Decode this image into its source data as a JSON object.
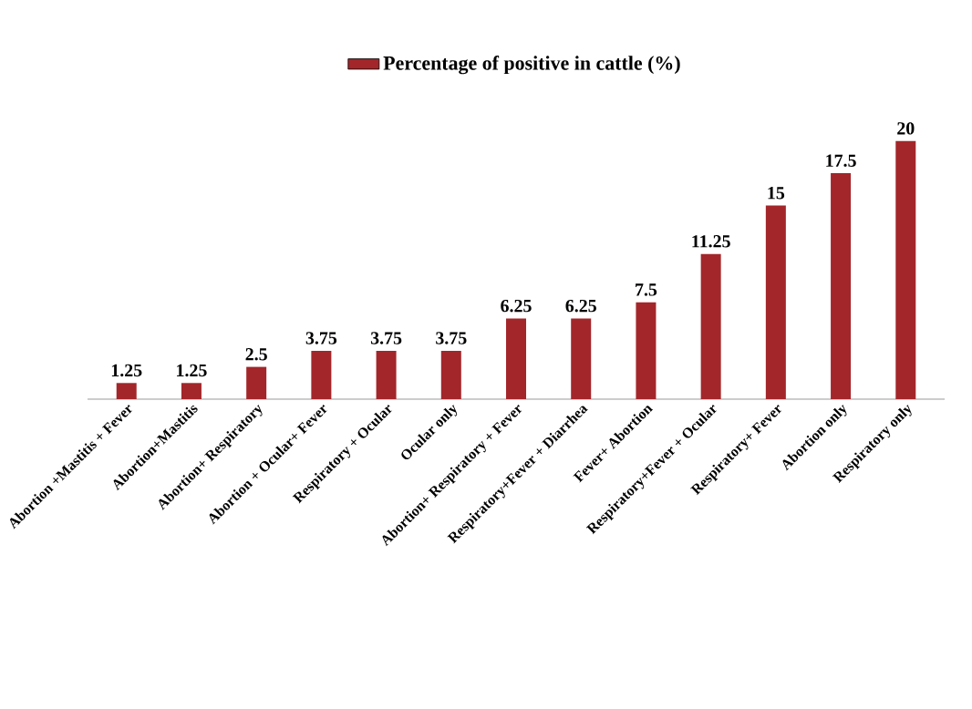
{
  "chart_data": {
    "type": "bar",
    "categories": [
      "Abortion +Mastitis + Fever",
      "Abortion+Mastitis",
      "Abortion+ Respiratory",
      "Abortion + Ocular+ Fever",
      "Respiratory + Ocular",
      "Ocular only",
      "Abortion+ Respiratory + Fever",
      "Respiratory+Fever + Diarrhea",
      "Fever+ Abortion",
      "Respiratory+Fever + Ocular",
      "Respiratory+ Fever",
      "Abortion only",
      "Respiratory only"
    ],
    "series": [
      {
        "name": "Percentage of positive in cattle (%)",
        "color": "#a3262a",
        "values": [
          1.25,
          1.25,
          2.5,
          3.75,
          3.75,
          3.75,
          6.25,
          6.25,
          7.5,
          11.25,
          15,
          17.5,
          20
        ]
      }
    ],
    "data_labels": true,
    "legend": "top"
  }
}
